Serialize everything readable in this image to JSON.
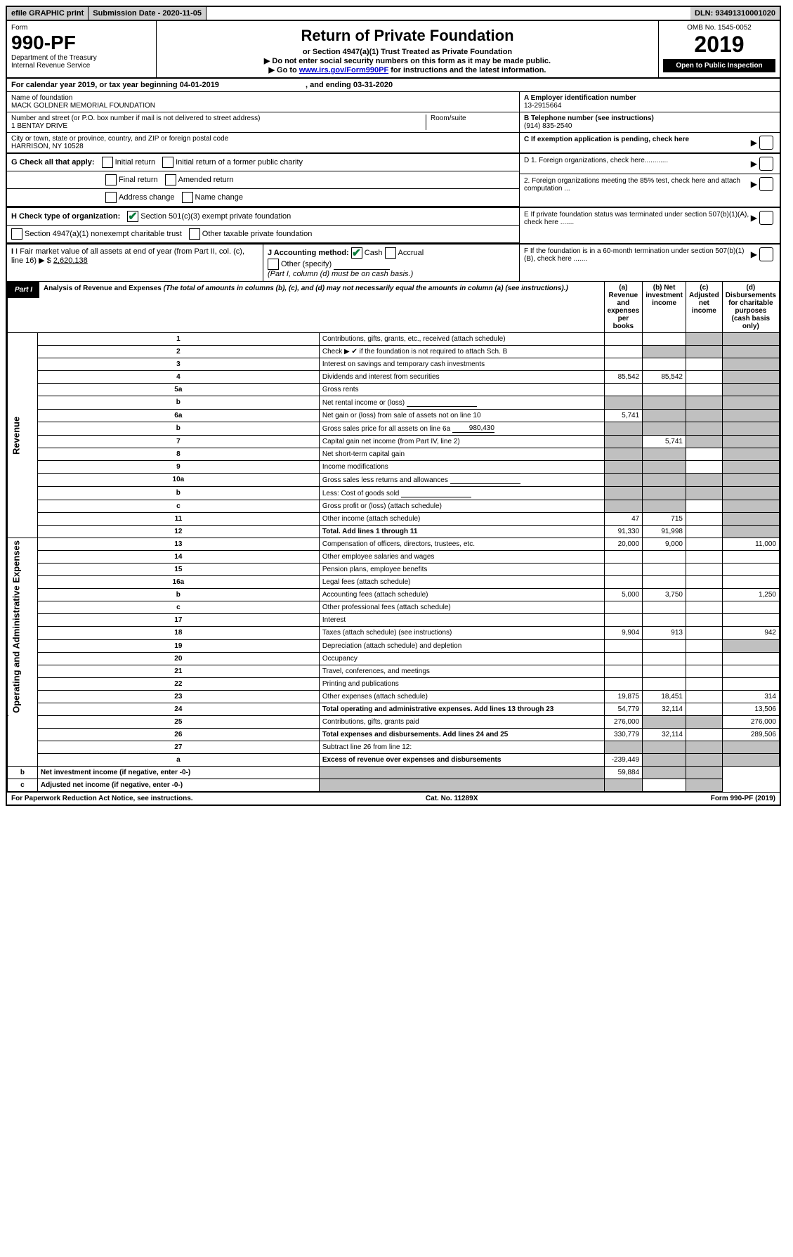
{
  "topbar": {
    "efile": "efile GRAPHIC print",
    "submission_label": "Submission Date - 2020-11-05",
    "dln": "DLN: 93491310001020"
  },
  "header": {
    "form_word": "Form",
    "form_number": "990-PF",
    "dept": "Department of the Treasury",
    "irs": "Internal Revenue Service",
    "title": "Return of Private Foundation",
    "subtitle": "or Section 4947(a)(1) Trust Treated as Private Foundation",
    "warn1": "▶ Do not enter social security numbers on this form as it may be made public.",
    "warn2_pre": "▶ Go to ",
    "warn2_link": "www.irs.gov/Form990PF",
    "warn2_post": " for instructions and the latest information.",
    "omb": "OMB No. 1545-0052",
    "year": "2019",
    "open": "Open to Public Inspection"
  },
  "calendar": {
    "pre": "For calendar year 2019, or tax year beginning ",
    "begin": "04-01-2019",
    "mid": ", and ending ",
    "end": "03-31-2020"
  },
  "entity": {
    "name_label": "Name of foundation",
    "name": "MACK GOLDNER MEMORIAL FOUNDATION",
    "addr_label": "Number and street (or P.O. box number if mail is not delivered to street address)",
    "addr": "1 BENTAY DRIVE",
    "room_label": "Room/suite",
    "city_label": "City or town, state or province, country, and ZIP or foreign postal code",
    "city": "HARRISON, NY  10528",
    "a_label": "A Employer identification number",
    "a_val": "13-2915664",
    "b_label": "B Telephone number (see instructions)",
    "b_val": "(914) 835-2540",
    "c_label": "C If exemption application is pending, check here"
  },
  "g": {
    "label": "G Check all that apply:",
    "opts": [
      "Initial return",
      "Initial return of a former public charity",
      "Final return",
      "Amended return",
      "Address change",
      "Name change"
    ]
  },
  "h": {
    "label": "H Check type of organization:",
    "o1": "Section 501(c)(3) exempt private foundation",
    "o2": "Section 4947(a)(1) nonexempt charitable trust",
    "o3": "Other taxable private foundation"
  },
  "i": {
    "label": "I Fair market value of all assets at end of year (from Part II, col. (c), line 16)",
    "arrow": "▶ $",
    "val": "2,620,138"
  },
  "j": {
    "label": "J Accounting method:",
    "cash": "Cash",
    "accrual": "Accrual",
    "other": "Other (specify)",
    "note": "(Part I, column (d) must be on cash basis.)"
  },
  "d": {
    "d1": "D 1. Foreign organizations, check here............",
    "d2": "2. Foreign organizations meeting the 85% test, check here and attach computation ..."
  },
  "e": "E  If private foundation status was terminated under section 507(b)(1)(A), check here .......",
  "f": "F  If the foundation is in a 60-month termination under section 507(b)(1)(B), check here .......",
  "part1": {
    "tab": "Part I",
    "title": "Analysis of Revenue and Expenses",
    "note": "(The total of amounts in columns (b), (c), and (d) may not necessarily equal the amounts in column (a) (see instructions).)",
    "col_a": "(a) Revenue and expenses per books",
    "col_b": "(b) Net investment income",
    "col_c": "(c) Adjusted net income",
    "col_d": "(d) Disbursements for charitable purposes (cash basis only)",
    "rev_label": "Revenue",
    "exp_label": "Operating and Administrative Expenses"
  },
  "rows": [
    {
      "n": "1",
      "d": "Contributions, gifts, grants, etc., received (attach schedule)",
      "a": "",
      "b": "",
      "c": "g",
      "dd": "g"
    },
    {
      "n": "2",
      "d": "Check ▶ ✔ if the foundation is not required to attach Sch. B",
      "a": "",
      "b": "g",
      "c": "g",
      "dd": "g",
      "checked": true
    },
    {
      "n": "3",
      "d": "Interest on savings and temporary cash investments",
      "a": "",
      "b": "",
      "c": "",
      "dd": "g"
    },
    {
      "n": "4",
      "d": "Dividends and interest from securities",
      "a": "85,542",
      "b": "85,542",
      "c": "",
      "dd": "g"
    },
    {
      "n": "5a",
      "d": "Gross rents",
      "a": "",
      "b": "",
      "c": "",
      "dd": "g"
    },
    {
      "n": "b",
      "d": "Net rental income or (loss)",
      "a": "g",
      "b": "g",
      "c": "g",
      "dd": "g",
      "blank": true
    },
    {
      "n": "6a",
      "d": "Net gain or (loss) from sale of assets not on line 10",
      "a": "5,741",
      "b": "g",
      "c": "g",
      "dd": "g"
    },
    {
      "n": "b",
      "d": "Gross sales price for all assets on line 6a",
      "a": "g",
      "b": "g",
      "c": "g",
      "dd": "g",
      "extra": "980,430"
    },
    {
      "n": "7",
      "d": "Capital gain net income (from Part IV, line 2)",
      "a": "g",
      "b": "5,741",
      "c": "g",
      "dd": "g"
    },
    {
      "n": "8",
      "d": "Net short-term capital gain",
      "a": "g",
      "b": "g",
      "c": "",
      "dd": "g"
    },
    {
      "n": "9",
      "d": "Income modifications",
      "a": "g",
      "b": "g",
      "c": "",
      "dd": "g"
    },
    {
      "n": "10a",
      "d": "Gross sales less returns and allowances",
      "a": "g",
      "b": "g",
      "c": "g",
      "dd": "g",
      "blank": true
    },
    {
      "n": "b",
      "d": "Less: Cost of goods sold",
      "a": "g",
      "b": "g",
      "c": "g",
      "dd": "g",
      "blank": true
    },
    {
      "n": "c",
      "d": "Gross profit or (loss) (attach schedule)",
      "a": "g",
      "b": "g",
      "c": "",
      "dd": "g"
    },
    {
      "n": "11",
      "d": "Other income (attach schedule)",
      "a": "47",
      "b": "715",
      "c": "",
      "dd": "g"
    },
    {
      "n": "12",
      "d": "Total. Add lines 1 through 11",
      "a": "91,330",
      "b": "91,998",
      "c": "",
      "dd": "g",
      "bold": true
    },
    {
      "n": "13",
      "d": "Compensation of officers, directors, trustees, etc.",
      "a": "20,000",
      "b": "9,000",
      "c": "",
      "dd": "11,000"
    },
    {
      "n": "14",
      "d": "Other employee salaries and wages",
      "a": "",
      "b": "",
      "c": "",
      "dd": ""
    },
    {
      "n": "15",
      "d": "Pension plans, employee benefits",
      "a": "",
      "b": "",
      "c": "",
      "dd": ""
    },
    {
      "n": "16a",
      "d": "Legal fees (attach schedule)",
      "a": "",
      "b": "",
      "c": "",
      "dd": ""
    },
    {
      "n": "b",
      "d": "Accounting fees (attach schedule)",
      "a": "5,000",
      "b": "3,750",
      "c": "",
      "dd": "1,250"
    },
    {
      "n": "c",
      "d": "Other professional fees (attach schedule)",
      "a": "",
      "b": "",
      "c": "",
      "dd": ""
    },
    {
      "n": "17",
      "d": "Interest",
      "a": "",
      "b": "",
      "c": "",
      "dd": ""
    },
    {
      "n": "18",
      "d": "Taxes (attach schedule) (see instructions)",
      "a": "9,904",
      "b": "913",
      "c": "",
      "dd": "942"
    },
    {
      "n": "19",
      "d": "Depreciation (attach schedule) and depletion",
      "a": "",
      "b": "",
      "c": "",
      "dd": "g"
    },
    {
      "n": "20",
      "d": "Occupancy",
      "a": "",
      "b": "",
      "c": "",
      "dd": ""
    },
    {
      "n": "21",
      "d": "Travel, conferences, and meetings",
      "a": "",
      "b": "",
      "c": "",
      "dd": ""
    },
    {
      "n": "22",
      "d": "Printing and publications",
      "a": "",
      "b": "",
      "c": "",
      "dd": ""
    },
    {
      "n": "23",
      "d": "Other expenses (attach schedule)",
      "a": "19,875",
      "b": "18,451",
      "c": "",
      "dd": "314"
    },
    {
      "n": "24",
      "d": "Total operating and administrative expenses. Add lines 13 through 23",
      "a": "54,779",
      "b": "32,114",
      "c": "",
      "dd": "13,506",
      "bold": true
    },
    {
      "n": "25",
      "d": "Contributions, gifts, grants paid",
      "a": "276,000",
      "b": "g",
      "c": "g",
      "dd": "276,000"
    },
    {
      "n": "26",
      "d": "Total expenses and disbursements. Add lines 24 and 25",
      "a": "330,779",
      "b": "32,114",
      "c": "",
      "dd": "289,506",
      "bold": true
    },
    {
      "n": "27",
      "d": "Subtract line 26 from line 12:",
      "a": "g",
      "b": "g",
      "c": "g",
      "dd": "g"
    },
    {
      "n": "a",
      "d": "Excess of revenue over expenses and disbursements",
      "a": "-239,449",
      "b": "g",
      "c": "g",
      "dd": "g",
      "bold": true
    },
    {
      "n": "b",
      "d": "Net investment income (if negative, enter -0-)",
      "a": "g",
      "b": "59,884",
      "c": "g",
      "dd": "g",
      "bold": true
    },
    {
      "n": "c",
      "d": "Adjusted net income (if negative, enter -0-)",
      "a": "g",
      "b": "g",
      "c": "",
      "dd": "g",
      "bold": true
    }
  ],
  "footer": {
    "left": "For Paperwork Reduction Act Notice, see instructions.",
    "mid": "Cat. No. 11289X",
    "right": "Form 990-PF (2019)"
  },
  "colors": {
    "grey": "#c0c0c0",
    "check_green": "#0a7a3a",
    "link_blue": "#0000cc"
  }
}
